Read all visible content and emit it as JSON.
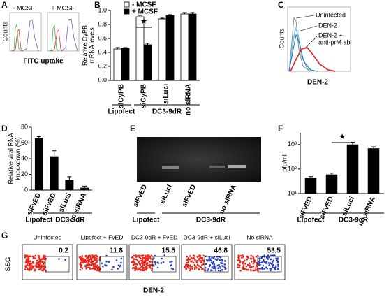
{
  "chart_data": [
    {
      "type": "bar",
      "label": "B",
      "y_label": [
        "Relative CyPB",
        "mRNA levels"
      ],
      "categories": [
        "siCyPB",
        "siCyPB",
        "siLuci",
        "no siRNA"
      ],
      "series": [
        {
          "name": "- MCSF",
          "color": "#ffffff",
          "values": [
            0.45,
            0.91,
            0.88,
            0.95
          ],
          "errors": [
            0.02,
            0.02,
            0.01,
            0.02
          ]
        },
        {
          "name": "+ MCSF",
          "color": "#000000",
          "values": [
            0.46,
            0.51,
            0.93,
            0.95
          ],
          "errors": [
            0.01,
            0.02,
            0.01,
            0.02
          ]
        }
      ],
      "ylim": [
        0,
        1.0
      ],
      "yticks": [
        {
          "value": 0,
          "label": "0.0"
        },
        {
          "value": 0.2,
          "label": "0.2"
        },
        {
          "value": 0.4,
          "label": "0.4"
        },
        {
          "value": 0.6,
          "label": "0.6"
        },
        {
          "value": 0.8,
          "label": "0.8"
        },
        {
          "value": 1.0,
          "label": "1.0"
        }
      ],
      "groups": [
        "Lipofect",
        "DC3-9dR"
      ],
      "annotation": "★"
    },
    {
      "type": "bar",
      "label": "D",
      "y_label": [
        "Relative viral RNA",
        "knockdown (%)"
      ],
      "categories": [
        "siFvED",
        "siFvED",
        "siLuci",
        "no siRNA"
      ],
      "values": [
        66,
        43,
        13,
        3
      ],
      "errors": [
        2,
        7,
        4,
        2
      ],
      "color": "#000000",
      "ylim": [
        0,
        80
      ],
      "yticks": [
        0,
        20,
        40,
        60,
        80
      ],
      "groups": [
        "Lipofect",
        "DC3-9dR"
      ]
    },
    {
      "type": "bar",
      "label": "F",
      "y_label": [
        "pfu/ml"
      ],
      "log_scale": true,
      "categories": [
        "siFvED",
        "siFvED",
        "siLuci",
        "no siRNA"
      ],
      "values": [
        45,
        60,
        1000,
        700
      ],
      "errors": [
        4,
        8,
        250,
        100
      ],
      "color": "#000000",
      "ylim": [
        10,
        3000
      ],
      "yticks": [
        {
          "value": 10,
          "label": "10¹"
        },
        {
          "value": 100,
          "label": "10²"
        },
        {
          "value": 1000,
          "label": "10³"
        }
      ],
      "groups": [
        "Lipofect",
        "DC3-9dR"
      ],
      "annotation": "★"
    }
  ],
  "panel_a": {
    "label": "A",
    "plots": [
      "- MCSF",
      "+ MCSF"
    ],
    "y_label": "Counts",
    "x_label": "FITC uptake"
  },
  "panel_c": {
    "label": "C",
    "legend": [
      "Uninfected",
      "DEN-2",
      "DEN-2 +",
      "anti-prM ab"
    ],
    "y_label": "Counts",
    "x_label": "DEN-2"
  },
  "panel_e": {
    "label": "E",
    "lanes": [
      "siFvED",
      "siLuci",
      "siFvED",
      "no siRNA"
    ],
    "groups": [
      "Lipofect",
      "DC3-9dR"
    ]
  },
  "panel_g": {
    "label": "G",
    "plots": [
      {
        "title": "Uninfected",
        "value": 0.2
      },
      {
        "title": "Lipofect + FvED",
        "value": 11.8
      },
      {
        "title": "DC3-9dR + FvED",
        "value": 15.5
      },
      {
        "title": "DC3-9dR + siLuci",
        "value": 46.8
      },
      {
        "title": "No siRNA",
        "value": 53.5
      }
    ],
    "y_label": "SSC",
    "x_label": "DEN-2"
  }
}
